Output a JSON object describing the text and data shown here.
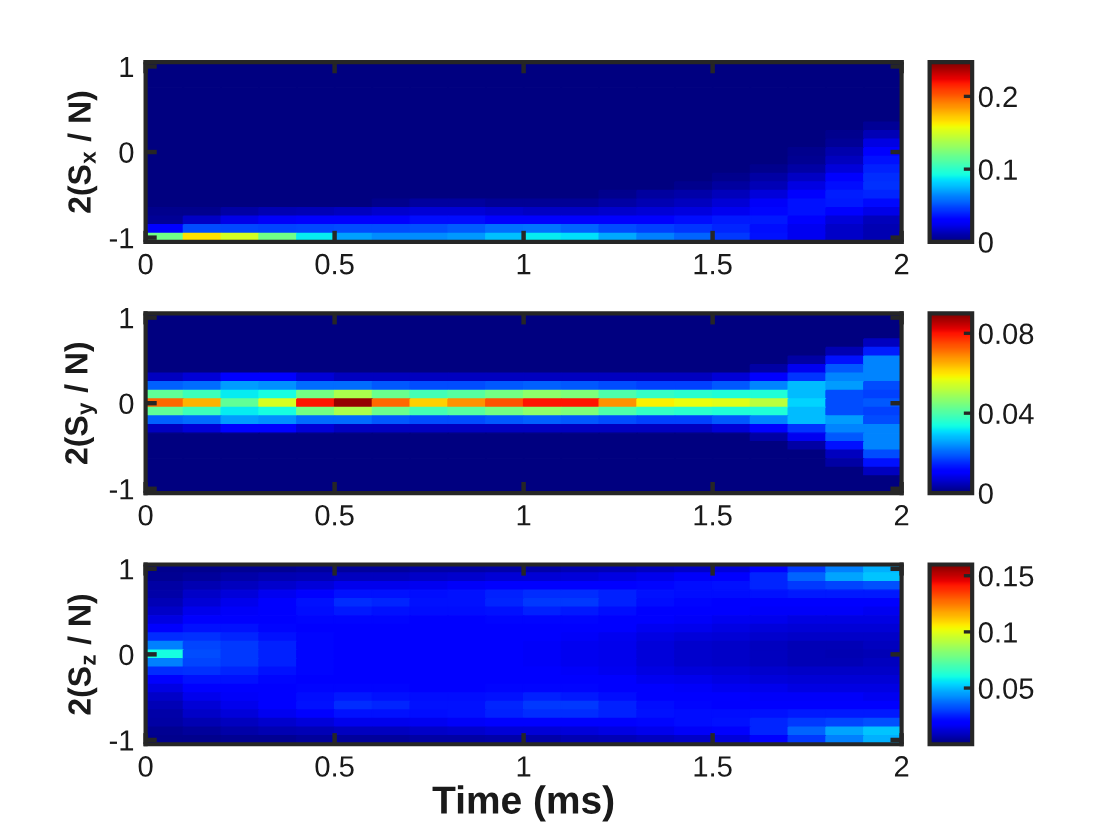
{
  "chart_data": [
    {
      "type": "heatmap",
      "ylabel": "2(S$_{x}$ / N)",
      "x": [
        0.05,
        0.15,
        0.25,
        0.35,
        0.45,
        0.55,
        0.65,
        0.75,
        0.85,
        0.95,
        1.05,
        1.15,
        1.25,
        1.35,
        1.45,
        1.55,
        1.65,
        1.75,
        1.85,
        1.95
      ],
      "y_categories": [
        "1",
        null,
        null,
        null,
        null,
        null,
        null,
        null,
        null,
        null,
        "0",
        null,
        null,
        null,
        null,
        null,
        null,
        null,
        null,
        null,
        "-1"
      ],
      "xlim": [
        0,
        2
      ],
      "xticks": [
        0,
        0.5,
        1,
        1.5,
        2
      ],
      "clim": [
        0,
        0.247
      ],
      "cticks": [
        0,
        0.1,
        0.2
      ],
      "cells": [
        [
          0,
          0,
          0,
          0,
          0,
          0,
          0,
          0,
          0,
          0,
          0,
          0,
          0,
          0,
          0,
          0,
          0,
          0,
          0,
          0
        ],
        [
          0,
          0,
          0,
          0,
          0,
          0,
          0,
          0,
          0,
          0,
          0,
          0,
          0,
          0,
          0,
          0,
          0,
          0,
          0,
          0
        ],
        [
          0,
          0,
          0,
          0,
          0,
          0,
          0,
          0,
          0,
          0,
          0,
          0,
          0,
          0,
          0,
          0,
          0,
          0,
          0,
          0
        ],
        [
          0,
          0,
          0,
          0,
          0,
          0,
          0,
          0,
          0,
          0,
          0,
          0,
          0,
          0,
          0,
          0,
          0,
          0,
          0,
          0
        ],
        [
          0,
          0,
          0,
          0,
          0,
          0,
          0,
          0,
          0,
          0,
          0,
          0,
          0,
          0,
          0,
          0,
          0,
          0,
          0,
          0
        ],
        [
          0,
          0,
          0,
          0,
          0,
          0,
          0,
          0,
          0,
          0,
          0,
          0,
          0,
          0,
          0,
          0,
          0,
          0,
          0,
          0
        ],
        [
          0,
          0,
          0,
          0,
          0,
          0,
          0,
          0,
          0,
          0,
          0,
          0,
          0,
          0,
          0,
          0,
          0,
          0,
          0,
          0
        ],
        [
          0,
          0,
          0,
          0,
          0,
          0,
          0,
          0,
          0,
          0,
          0,
          0,
          0,
          0,
          0,
          0,
          0,
          0,
          0,
          0.005
        ],
        [
          0,
          0,
          0,
          0,
          0,
          0,
          0,
          0,
          0,
          0,
          0,
          0,
          0,
          0,
          0,
          0,
          0,
          0,
          0.003,
          0.012
        ],
        [
          0,
          0,
          0,
          0,
          0,
          0,
          0,
          0,
          0,
          0,
          0,
          0,
          0,
          0,
          0,
          0,
          0,
          0,
          0.005,
          0.022
        ],
        [
          0,
          0,
          0,
          0,
          0,
          0,
          0,
          0,
          0,
          0,
          0,
          0,
          0,
          0,
          0,
          0,
          0,
          0.003,
          0.01,
          0.03
        ],
        [
          0,
          0,
          0,
          0,
          0,
          0,
          0,
          0,
          0,
          0,
          0,
          0,
          0,
          0,
          0,
          0,
          0,
          0.004,
          0.014,
          0.035
        ],
        [
          0,
          0,
          0,
          0,
          0,
          0,
          0,
          0,
          0,
          0,
          0,
          0,
          0,
          0,
          0,
          0,
          0.003,
          0.008,
          0.02,
          0.039
        ],
        [
          0,
          0,
          0,
          0,
          0,
          0,
          0,
          0,
          0,
          0,
          0,
          0,
          0,
          0,
          0,
          0.003,
          0.008,
          0.015,
          0.028,
          0.042
        ],
        [
          0,
          0,
          0,
          0,
          0,
          0,
          0,
          0,
          0,
          0,
          0,
          0,
          0,
          0,
          0.003,
          0.007,
          0.012,
          0.022,
          0.034,
          0.043
        ],
        [
          0,
          0,
          0,
          0,
          0,
          0,
          0,
          0,
          0,
          0,
          0,
          0,
          0.003,
          0.007,
          0.009,
          0.013,
          0.02,
          0.03,
          0.038,
          0.04
        ],
        [
          0,
          0,
          0,
          0,
          0,
          0,
          0.003,
          0.007,
          0.007,
          0.005,
          0.005,
          0.005,
          0.008,
          0.011,
          0.014,
          0.019,
          0.027,
          0.035,
          0.037,
          0.033
        ],
        [
          0.003,
          0.003,
          0.008,
          0.011,
          0.012,
          0.014,
          0.017,
          0.019,
          0.019,
          0.017,
          0.015,
          0.015,
          0.017,
          0.019,
          0.021,
          0.025,
          0.032,
          0.035,
          0.03,
          0.023
        ],
        [
          0.005,
          0.015,
          0.023,
          0.027,
          0.028,
          0.029,
          0.031,
          0.034,
          0.034,
          0.031,
          0.029,
          0.028,
          0.029,
          0.031,
          0.034,
          0.037,
          0.037,
          0.03,
          0.02,
          0.013
        ],
        [
          0.03,
          0.05,
          0.049,
          0.048,
          0.049,
          0.05,
          0.05,
          0.051,
          0.054,
          0.058,
          0.059,
          0.055,
          0.05,
          0.047,
          0.044,
          0.04,
          0.034,
          0.025,
          0.016,
          0.011
        ],
        [
          0.12,
          0.165,
          0.15,
          0.12,
          0.088,
          0.07,
          0.065,
          0.065,
          0.068,
          0.078,
          0.088,
          0.085,
          0.072,
          0.062,
          0.055,
          0.045,
          0.035,
          0.025,
          0.016,
          0.011
        ]
      ]
    },
    {
      "type": "heatmap",
      "ylabel": "2(S$_{y}$ / N)",
      "x": [
        0.05,
        0.15,
        0.25,
        0.35,
        0.45,
        0.55,
        0.65,
        0.75,
        0.85,
        0.95,
        1.05,
        1.15,
        1.25,
        1.35,
        1.45,
        1.55,
        1.65,
        1.75,
        1.85,
        1.95
      ],
      "y_categories": [
        "1",
        null,
        null,
        null,
        null,
        null,
        null,
        null,
        null,
        null,
        "0",
        null,
        null,
        null,
        null,
        null,
        null,
        null,
        null,
        null,
        "-1"
      ],
      "xlim": [
        0,
        2
      ],
      "xticks": [
        0,
        0.5,
        1,
        1.5,
        2
      ],
      "clim": [
        0,
        0.09
      ],
      "cticks": [
        0,
        0.04,
        0.08
      ],
      "cells": [
        [
          0,
          0,
          0,
          0,
          0,
          0,
          0,
          0,
          0,
          0,
          0,
          0,
          0,
          0,
          0,
          0,
          0,
          0,
          0,
          0
        ],
        [
          0,
          0,
          0,
          0,
          0,
          0,
          0,
          0,
          0,
          0,
          0,
          0,
          0,
          0,
          0,
          0,
          0,
          0,
          0,
          0
        ],
        [
          0,
          0,
          0,
          0,
          0,
          0,
          0,
          0,
          0,
          0,
          0,
          0,
          0,
          0,
          0,
          0,
          0,
          0,
          0,
          0
        ],
        [
          0,
          0,
          0,
          0,
          0,
          0,
          0,
          0,
          0,
          0,
          0,
          0,
          0,
          0,
          0,
          0,
          0,
          0,
          0,
          0.005
        ],
        [
          0,
          0,
          0,
          0,
          0,
          0,
          0,
          0,
          0,
          0,
          0,
          0,
          0,
          0,
          0,
          0,
          0,
          0,
          0.004,
          0.014
        ],
        [
          0,
          0,
          0,
          0,
          0,
          0,
          0,
          0,
          0,
          0,
          0,
          0,
          0,
          0,
          0,
          0,
          0,
          0.003,
          0.013,
          0.023
        ],
        [
          0,
          0,
          0,
          0,
          0,
          0,
          0,
          0,
          0,
          0,
          0,
          0,
          0,
          0,
          0,
          0,
          0.003,
          0.009,
          0.019,
          0.023
        ],
        [
          0.005,
          0.007,
          0.01,
          0.01,
          0.007,
          0.005,
          0.005,
          0.005,
          0.005,
          0.005,
          0.005,
          0.005,
          0.005,
          0.005,
          0.005,
          0.007,
          0.01,
          0.016,
          0.023,
          0.023
        ],
        [
          0.02,
          0.021,
          0.025,
          0.024,
          0.021,
          0.021,
          0.019,
          0.018,
          0.018,
          0.019,
          0.02,
          0.019,
          0.018,
          0.017,
          0.017,
          0.019,
          0.023,
          0.028,
          0.025,
          0.018
        ],
        [
          0.042,
          0.038,
          0.032,
          0.034,
          0.044,
          0.05,
          0.043,
          0.039,
          0.041,
          0.044,
          0.047,
          0.045,
          0.04,
          0.037,
          0.036,
          0.035,
          0.035,
          0.028,
          0.018,
          0.017
        ],
        [
          0.072,
          0.065,
          0.042,
          0.055,
          0.08,
          0.088,
          0.072,
          0.062,
          0.068,
          0.074,
          0.08,
          0.08,
          0.068,
          0.059,
          0.057,
          0.056,
          0.052,
          0.03,
          0.018,
          0.019
        ],
        [
          0.042,
          0.038,
          0.032,
          0.034,
          0.044,
          0.05,
          0.043,
          0.039,
          0.041,
          0.044,
          0.047,
          0.045,
          0.04,
          0.037,
          0.036,
          0.035,
          0.035,
          0.028,
          0.018,
          0.017
        ],
        [
          0.02,
          0.021,
          0.025,
          0.024,
          0.021,
          0.021,
          0.019,
          0.018,
          0.018,
          0.019,
          0.02,
          0.019,
          0.018,
          0.017,
          0.017,
          0.019,
          0.023,
          0.028,
          0.025,
          0.018
        ],
        [
          0.005,
          0.007,
          0.01,
          0.01,
          0.007,
          0.005,
          0.005,
          0.005,
          0.005,
          0.005,
          0.005,
          0.005,
          0.005,
          0.005,
          0.005,
          0.007,
          0.01,
          0.016,
          0.023,
          0.023
        ],
        [
          0,
          0,
          0,
          0,
          0,
          0,
          0,
          0,
          0,
          0,
          0,
          0,
          0,
          0,
          0,
          0,
          0.003,
          0.009,
          0.019,
          0.023
        ],
        [
          0,
          0,
          0,
          0,
          0,
          0,
          0,
          0,
          0,
          0,
          0,
          0,
          0,
          0,
          0,
          0,
          0,
          0.003,
          0.013,
          0.023
        ],
        [
          0,
          0,
          0,
          0,
          0,
          0,
          0,
          0,
          0,
          0,
          0,
          0,
          0,
          0,
          0,
          0,
          0,
          0,
          0.005,
          0.018
        ],
        [
          0,
          0,
          0,
          0,
          0,
          0,
          0,
          0,
          0,
          0,
          0,
          0,
          0,
          0,
          0,
          0,
          0,
          0,
          0.003,
          0.013
        ],
        [
          0,
          0,
          0,
          0,
          0,
          0,
          0,
          0,
          0,
          0,
          0,
          0,
          0,
          0,
          0,
          0,
          0,
          0,
          0,
          0.005
        ],
        [
          0,
          0,
          0,
          0,
          0,
          0,
          0,
          0,
          0,
          0,
          0,
          0,
          0,
          0,
          0,
          0,
          0,
          0,
          0,
          0
        ],
        [
          0,
          0,
          0,
          0,
          0,
          0,
          0,
          0,
          0,
          0,
          0,
          0,
          0,
          0,
          0,
          0,
          0,
          0,
          0,
          0
        ]
      ]
    },
    {
      "type": "heatmap",
      "ylabel": "2(S$_{z}$ / N)",
      "xlabel": "Time (ms)",
      "x": [
        0.05,
        0.15,
        0.25,
        0.35,
        0.45,
        0.55,
        0.65,
        0.75,
        0.85,
        0.95,
        1.05,
        1.15,
        1.25,
        1.35,
        1.45,
        1.55,
        1.65,
        1.75,
        1.85,
        1.95
      ],
      "y_categories": [
        "1",
        null,
        null,
        null,
        null,
        null,
        null,
        null,
        null,
        null,
        "0",
        null,
        null,
        null,
        null,
        null,
        null,
        null,
        null,
        null,
        "-1"
      ],
      "xlim": [
        0,
        2
      ],
      "xticks": [
        0,
        0.5,
        1,
        1.5,
        2
      ],
      "clim": [
        0,
        0.16
      ],
      "cticks": [
        0.05,
        0.1,
        0.15
      ],
      "cells": [
        [
          0.002,
          0.002,
          0.003,
          0.003,
          0.004,
          0.004,
          0.004,
          0.005,
          0.005,
          0.006,
          0.006,
          0.007,
          0.008,
          0.009,
          0.01,
          0.013,
          0.019,
          0.029,
          0.04,
          0.048
        ],
        [
          0.003,
          0.004,
          0.006,
          0.007,
          0.008,
          0.009,
          0.009,
          0.01,
          0.011,
          0.012,
          0.012,
          0.013,
          0.014,
          0.015,
          0.017,
          0.02,
          0.026,
          0.036,
          0.046,
          0.051
        ],
        [
          0.005,
          0.007,
          0.009,
          0.011,
          0.013,
          0.015,
          0.015,
          0.016,
          0.017,
          0.019,
          0.02,
          0.02,
          0.02,
          0.021,
          0.022,
          0.023,
          0.026,
          0.029,
          0.031,
          0.033
        ],
        [
          0.006,
          0.01,
          0.013,
          0.016,
          0.02,
          0.023,
          0.023,
          0.022,
          0.023,
          0.025,
          0.027,
          0.027,
          0.025,
          0.023,
          0.022,
          0.022,
          0.023,
          0.024,
          0.024,
          0.024
        ],
        [
          0.008,
          0.012,
          0.015,
          0.018,
          0.023,
          0.027,
          0.026,
          0.023,
          0.023,
          0.026,
          0.029,
          0.029,
          0.025,
          0.022,
          0.021,
          0.02,
          0.02,
          0.02,
          0.02,
          0.019
        ],
        [
          0.01,
          0.015,
          0.017,
          0.019,
          0.022,
          0.024,
          0.023,
          0.022,
          0.022,
          0.023,
          0.025,
          0.024,
          0.022,
          0.02,
          0.019,
          0.018,
          0.017,
          0.017,
          0.017,
          0.016
        ],
        [
          0.014,
          0.018,
          0.02,
          0.02,
          0.021,
          0.021,
          0.021,
          0.02,
          0.02,
          0.021,
          0.021,
          0.021,
          0.02,
          0.018,
          0.017,
          0.016,
          0.015,
          0.014,
          0.014,
          0.014
        ],
        [
          0.019,
          0.023,
          0.023,
          0.021,
          0.02,
          0.02,
          0.02,
          0.019,
          0.019,
          0.019,
          0.019,
          0.019,
          0.018,
          0.016,
          0.015,
          0.014,
          0.013,
          0.012,
          0.012,
          0.012
        ],
        [
          0.027,
          0.028,
          0.026,
          0.023,
          0.021,
          0.02,
          0.019,
          0.018,
          0.018,
          0.018,
          0.018,
          0.017,
          0.016,
          0.014,
          0.013,
          0.012,
          0.011,
          0.01,
          0.01,
          0.01
        ],
        [
          0.04,
          0.031,
          0.029,
          0.025,
          0.021,
          0.019,
          0.018,
          0.018,
          0.018,
          0.018,
          0.017,
          0.016,
          0.015,
          0.013,
          0.011,
          0.01,
          0.009,
          0.008,
          0.008,
          0.009
        ],
        [
          0.06,
          0.032,
          0.029,
          0.025,
          0.021,
          0.019,
          0.018,
          0.018,
          0.018,
          0.018,
          0.017,
          0.016,
          0.015,
          0.013,
          0.011,
          0.01,
          0.009,
          0.008,
          0.007,
          0.008
        ],
        [
          0.04,
          0.031,
          0.029,
          0.025,
          0.021,
          0.019,
          0.018,
          0.018,
          0.018,
          0.018,
          0.017,
          0.016,
          0.015,
          0.013,
          0.011,
          0.01,
          0.009,
          0.008,
          0.008,
          0.009
        ],
        [
          0.027,
          0.028,
          0.026,
          0.023,
          0.021,
          0.02,
          0.019,
          0.018,
          0.018,
          0.018,
          0.018,
          0.017,
          0.016,
          0.014,
          0.013,
          0.012,
          0.011,
          0.01,
          0.01,
          0.01
        ],
        [
          0.019,
          0.023,
          0.023,
          0.021,
          0.02,
          0.02,
          0.02,
          0.019,
          0.019,
          0.019,
          0.019,
          0.019,
          0.018,
          0.016,
          0.015,
          0.014,
          0.013,
          0.012,
          0.012,
          0.012
        ],
        [
          0.014,
          0.018,
          0.02,
          0.02,
          0.021,
          0.021,
          0.021,
          0.02,
          0.02,
          0.021,
          0.021,
          0.021,
          0.02,
          0.018,
          0.017,
          0.016,
          0.015,
          0.014,
          0.014,
          0.014
        ],
        [
          0.01,
          0.015,
          0.017,
          0.019,
          0.022,
          0.024,
          0.023,
          0.022,
          0.022,
          0.023,
          0.025,
          0.024,
          0.022,
          0.02,
          0.019,
          0.018,
          0.017,
          0.017,
          0.017,
          0.016
        ],
        [
          0.008,
          0.012,
          0.015,
          0.018,
          0.023,
          0.027,
          0.026,
          0.023,
          0.023,
          0.026,
          0.029,
          0.029,
          0.025,
          0.022,
          0.021,
          0.02,
          0.02,
          0.02,
          0.02,
          0.019
        ],
        [
          0.006,
          0.01,
          0.013,
          0.016,
          0.02,
          0.023,
          0.023,
          0.022,
          0.023,
          0.025,
          0.027,
          0.027,
          0.025,
          0.023,
          0.022,
          0.022,
          0.023,
          0.024,
          0.024,
          0.024
        ],
        [
          0.005,
          0.007,
          0.009,
          0.011,
          0.013,
          0.015,
          0.015,
          0.016,
          0.017,
          0.019,
          0.02,
          0.02,
          0.02,
          0.021,
          0.022,
          0.023,
          0.026,
          0.029,
          0.031,
          0.033
        ],
        [
          0.003,
          0.004,
          0.006,
          0.007,
          0.008,
          0.009,
          0.009,
          0.01,
          0.011,
          0.012,
          0.012,
          0.013,
          0.014,
          0.015,
          0.017,
          0.02,
          0.026,
          0.036,
          0.046,
          0.051
        ],
        [
          0.002,
          0.002,
          0.003,
          0.003,
          0.004,
          0.004,
          0.004,
          0.005,
          0.005,
          0.006,
          0.006,
          0.007,
          0.008,
          0.009,
          0.01,
          0.013,
          0.019,
          0.029,
          0.04,
          0.048
        ]
      ]
    }
  ]
}
